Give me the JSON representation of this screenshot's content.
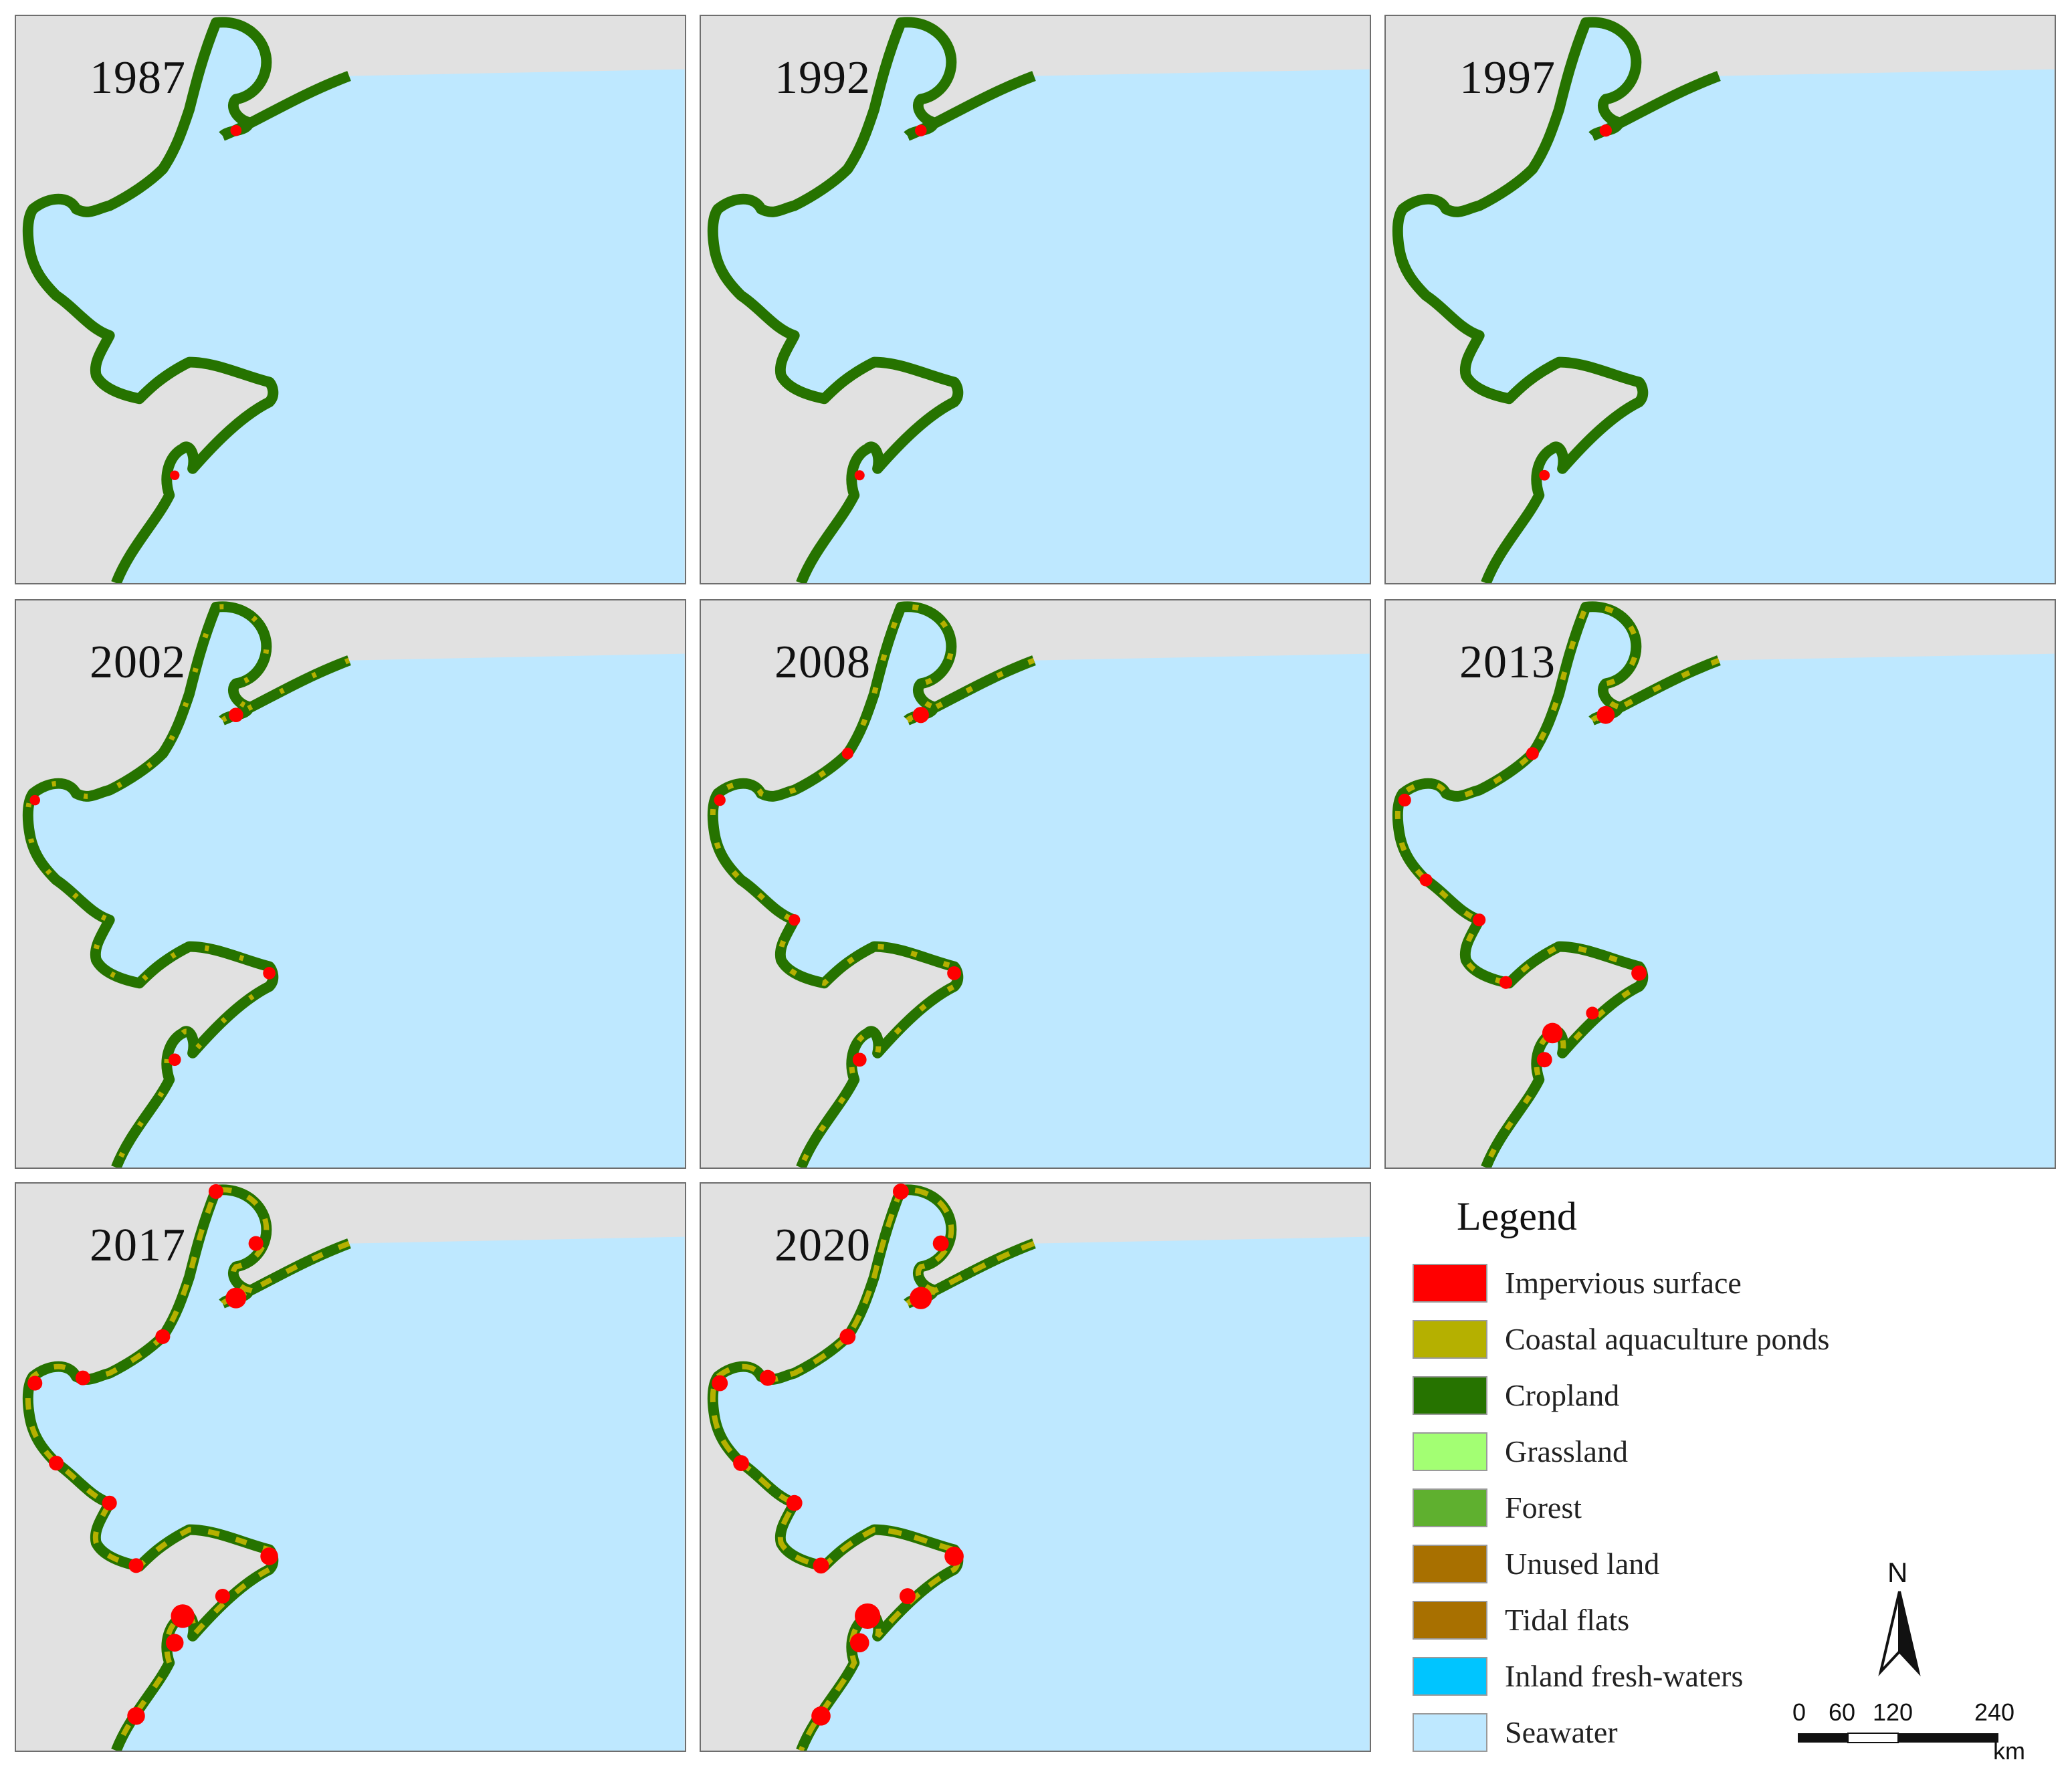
{
  "panels": [
    {
      "year": "1987",
      "stage": 0
    },
    {
      "year": "1992",
      "stage": 0.05
    },
    {
      "year": "1997",
      "stage": 0.1
    },
    {
      "year": "2002",
      "stage": 0.3
    },
    {
      "year": "2008",
      "stage": 0.45
    },
    {
      "year": "2013",
      "stage": 0.6
    },
    {
      "year": "2017",
      "stage": 0.85
    },
    {
      "year": "2020",
      "stage": 1.0
    }
  ],
  "legend": {
    "title": "Legend",
    "items": [
      {
        "label": "Impervious surface",
        "color": "#ff0000"
      },
      {
        "label": "Coastal aquaculture ponds",
        "color": "#b5b000"
      },
      {
        "label": "Cropland",
        "color": "#267300"
      },
      {
        "label": "Grassland",
        "color": "#a3ff73"
      },
      {
        "label": "Forest",
        "color": "#5fb02f"
      },
      {
        "label": "Unused land",
        "color": "#a87000"
      },
      {
        "label": "Tidal flats",
        "color": "#a87000"
      },
      {
        "label": "Inland fresh-waters",
        "color": "#00c5ff"
      },
      {
        "label": "Seawater",
        "color": "#bee8ff"
      }
    ]
  },
  "north_arrow": {
    "label": "N"
  },
  "scale_bar": {
    "ticks": [
      "0",
      "60",
      "120",
      "240"
    ],
    "unit": "km"
  },
  "colors": {
    "land": "#e1e1e1",
    "sea": "#bee8ff",
    "coast_green": "#267300",
    "impervious": "#ff0000",
    "ponds": "#b5b000"
  }
}
